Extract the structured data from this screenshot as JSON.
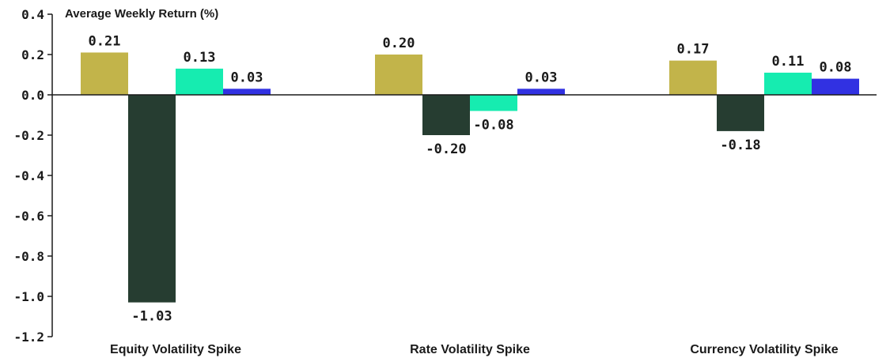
{
  "chart_data": {
    "type": "bar",
    "ylabel": "Average Weekly Return (%)",
    "categories": [
      "Equity Volatility Spike",
      "Rate Volatility Spike",
      "Currency Volatility Spike"
    ],
    "series": [
      {
        "color": "#c2b44a",
        "values": [
          0.21,
          0.2,
          0.17
        ]
      },
      {
        "color": "#263d31",
        "values": [
          -1.03,
          -0.2,
          -0.18
        ]
      },
      {
        "color": "#16ecb0",
        "values": [
          0.13,
          -0.08,
          0.11
        ]
      },
      {
        "color": "#3131e2",
        "values": [
          0.03,
          0.03,
          0.08
        ]
      }
    ],
    "value_labels": [
      [
        "0.21",
        "0.20",
        "0.17"
      ],
      [
        "-1.03",
        "-0.20",
        "-0.18"
      ],
      [
        "0.13",
        "-0.08",
        "0.11"
      ],
      [
        "0.03",
        "0.03",
        "0.08"
      ]
    ],
    "ylim": [
      -1.2,
      0.4
    ],
    "yticks": [
      "0.4",
      "0.2",
      "0.0",
      "-0.2",
      "-0.4",
      "-0.6",
      "-0.8",
      "-1.0",
      "-1.2"
    ],
    "grid": false,
    "legend": "none"
  }
}
